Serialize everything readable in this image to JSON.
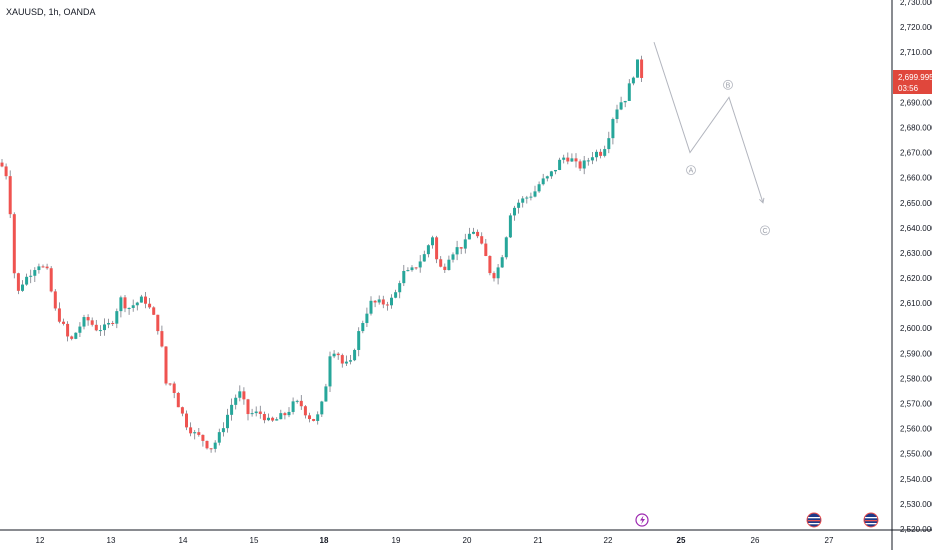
{
  "header": {
    "symbol": "XAUUSD, 1h, OANDA"
  },
  "price_badge": {
    "price": "2,699.995",
    "timer": "03:56"
  },
  "events": {
    "flash_icon": "lightning-icon",
    "flag_icon": "us-flag-icon"
  },
  "colors": {
    "up": "#26a69a",
    "down": "#ef5350",
    "badge": "#e0473c",
    "projection": "#b2b5be",
    "grid_axis": "#131722"
  },
  "chart_data": {
    "type": "candlestick",
    "title": "XAUUSD, 1h, OANDA",
    "ylim": [
      2520,
      2730
    ],
    "y_ticks": [
      "2,520.000",
      "2,530.000",
      "2,540.000",
      "2,550.000",
      "2,560.000",
      "2,570.000",
      "2,580.000",
      "2,590.000",
      "2,600.000",
      "2,610.000",
      "2,620.000",
      "2,630.000",
      "2,640.000",
      "2,650.000",
      "2,660.000",
      "2,670.000",
      "2,680.000",
      "2,690.000",
      "2,700.000",
      "2,710.000",
      "2,720.000",
      "2,730.000"
    ],
    "x_ticks": [
      {
        "label": "12",
        "bold": false
      },
      {
        "label": "13",
        "bold": false
      },
      {
        "label": "14",
        "bold": false
      },
      {
        "label": "15",
        "bold": false
      },
      {
        "label": "18",
        "bold": true
      },
      {
        "label": "19",
        "bold": false
      },
      {
        "label": "20",
        "bold": false
      },
      {
        "label": "21",
        "bold": false
      },
      {
        "label": "22",
        "bold": false
      },
      {
        "label": "25",
        "bold": true
      },
      {
        "label": "26",
        "bold": false
      },
      {
        "label": "27",
        "bold": false
      }
    ],
    "price_path": [
      [
        0,
        2666
      ],
      [
        8,
        2660
      ],
      [
        12,
        2636
      ],
      [
        16,
        2612
      ],
      [
        22,
        2618
      ],
      [
        30,
        2622
      ],
      [
        38,
        2626
      ],
      [
        48,
        2622
      ],
      [
        54,
        2608
      ],
      [
        62,
        2602
      ],
      [
        70,
        2594
      ],
      [
        78,
        2600
      ],
      [
        86,
        2604
      ],
      [
        96,
        2600
      ],
      [
        106,
        2600
      ],
      [
        114,
        2604
      ],
      [
        120,
        2612
      ],
      [
        128,
        2608
      ],
      [
        136,
        2610
      ],
      [
        144,
        2612
      ],
      [
        152,
        2606
      ],
      [
        160,
        2598
      ],
      [
        166,
        2578
      ],
      [
        172,
        2578
      ],
      [
        178,
        2570
      ],
      [
        186,
        2562
      ],
      [
        194,
        2558
      ],
      [
        202,
        2556
      ],
      [
        210,
        2552
      ],
      [
        218,
        2556
      ],
      [
        226,
        2564
      ],
      [
        234,
        2572
      ],
      [
        240,
        2574
      ],
      [
        248,
        2566
      ],
      [
        256,
        2566
      ],
      [
        262,
        2566
      ],
      [
        270,
        2562
      ],
      [
        278,
        2564
      ],
      [
        286,
        2566
      ],
      [
        294,
        2570
      ],
      [
        300,
        2570
      ],
      [
        308,
        2565
      ],
      [
        316,
        2563
      ],
      [
        324,
        2572
      ],
      [
        330,
        2590
      ],
      [
        336,
        2592
      ],
      [
        342,
        2586
      ],
      [
        350,
        2585
      ],
      [
        356,
        2595
      ],
      [
        362,
        2602
      ],
      [
        370,
        2610
      ],
      [
        378,
        2610
      ],
      [
        386,
        2610
      ],
      [
        394,
        2612
      ],
      [
        402,
        2622
      ],
      [
        410,
        2622
      ],
      [
        418,
        2626
      ],
      [
        426,
        2630
      ],
      [
        432,
        2638
      ],
      [
        438,
        2624
      ],
      [
        444,
        2624
      ],
      [
        450,
        2630
      ],
      [
        458,
        2632
      ],
      [
        466,
        2634
      ],
      [
        472,
        2640
      ],
      [
        478,
        2636
      ],
      [
        486,
        2628
      ],
      [
        492,
        2620
      ],
      [
        498,
        2624
      ],
      [
        504,
        2632
      ],
      [
        510,
        2646
      ],
      [
        518,
        2650
      ],
      [
        526,
        2652
      ],
      [
        534,
        2654
      ],
      [
        540,
        2658
      ],
      [
        548,
        2660
      ],
      [
        556,
        2664
      ],
      [
        562,
        2668
      ],
      [
        570,
        2668
      ],
      [
        578,
        2664
      ],
      [
        586,
        2666
      ],
      [
        594,
        2670
      ],
      [
        602,
        2670
      ],
      [
        608,
        2676
      ],
      [
        614,
        2686
      ],
      [
        620,
        2690
      ],
      [
        626,
        2692
      ],
      [
        632,
        2700
      ],
      [
        638,
        2706
      ],
      [
        642,
        2700
      ]
    ],
    "projection": {
      "path": [
        [
          654,
          2714
        ],
        [
          690,
          2670
        ],
        [
          729,
          2692
        ],
        [
          763,
          2650
        ]
      ],
      "labels": [
        {
          "text": "A",
          "x": 691,
          "y": 2663
        },
        {
          "text": "B",
          "x": 728,
          "y": 2697
        },
        {
          "text": "C",
          "x": 765,
          "y": 2639
        }
      ]
    },
    "last_price": 2699.995
  }
}
